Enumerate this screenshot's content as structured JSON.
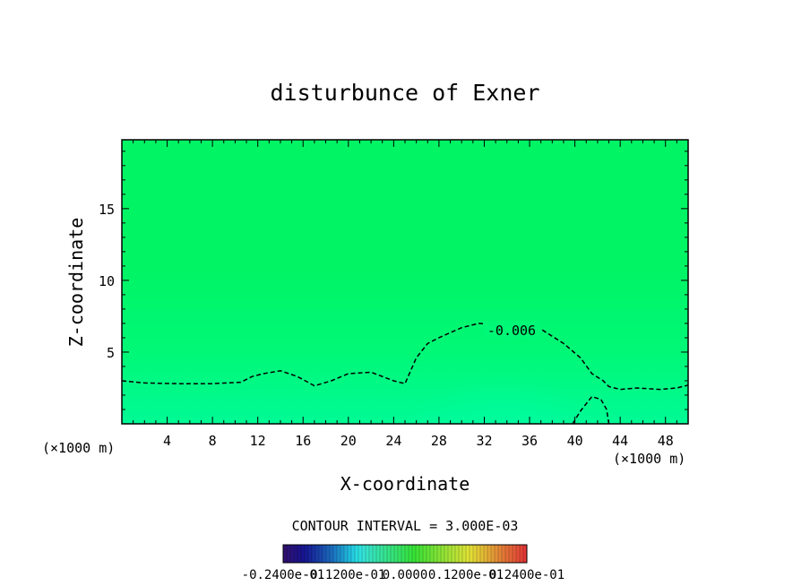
{
  "chart_data": {
    "type": "heatmap",
    "title": "disturbunce of Exner",
    "xlabel": "X-coordinate",
    "ylabel": "Z-coordinate",
    "x_unit_left": "(×1000 m)",
    "x_unit_right": "(×1000 m)",
    "xlim": [
      0,
      50
    ],
    "ylim": [
      0,
      19.8
    ],
    "xticks": [
      4,
      8,
      12,
      16,
      20,
      24,
      28,
      32,
      36,
      40,
      44,
      48
    ],
    "yticks": [
      5,
      10,
      15
    ],
    "contour_interval_text": "CONTOUR INTERVAL = 3.000E-03",
    "contour_label": "-0.006",
    "contour_level": -0.006,
    "contour_line": [
      [
        0,
        3.0
      ],
      [
        2,
        2.85
      ],
      [
        5,
        2.8
      ],
      [
        8,
        2.8
      ],
      [
        10.5,
        2.9
      ],
      [
        11.5,
        3.3
      ],
      [
        12.5,
        3.5
      ],
      [
        14,
        3.7
      ],
      [
        15.5,
        3.3
      ],
      [
        17,
        2.65
      ],
      [
        18.5,
        3.0
      ],
      [
        20,
        3.5
      ],
      [
        22,
        3.6
      ],
      [
        24,
        3.0
      ],
      [
        25,
        2.8
      ],
      [
        26,
        4.6
      ],
      [
        27,
        5.6
      ],
      [
        28,
        6.0
      ],
      [
        30,
        6.7
      ],
      [
        31.5,
        7.0
      ],
      [
        33.5,
        6.9
      ],
      [
        35.5,
        6.9
      ],
      [
        37,
        6.6
      ],
      [
        39,
        5.6
      ],
      [
        40.5,
        4.6
      ],
      [
        41.5,
        3.5
      ],
      [
        42.5,
        3.0
      ],
      [
        43,
        2.6
      ],
      [
        44,
        2.4
      ],
      [
        45.5,
        2.5
      ],
      [
        47.5,
        2.4
      ],
      [
        49,
        2.5
      ],
      [
        50,
        2.7
      ]
    ],
    "contour_loop": [
      [
        39.8,
        0
      ],
      [
        40.5,
        0.9
      ],
      [
        41.5,
        1.9
      ],
      [
        42.3,
        1.7
      ],
      [
        42.8,
        1.0
      ],
      [
        43.0,
        0
      ]
    ],
    "colorbar_labels": [
      "-0.2400e-01",
      "-0.1200e-01",
      "0.0000",
      "0.1200e-01",
      "0.2400e-01"
    ],
    "colorbar_min": -0.024,
    "colorbar_max": 0.024,
    "field_colors": {
      "top": "#00f464",
      "mid": "#00f877",
      "low": "#00fa95",
      "bubble": "#00fca8"
    }
  }
}
